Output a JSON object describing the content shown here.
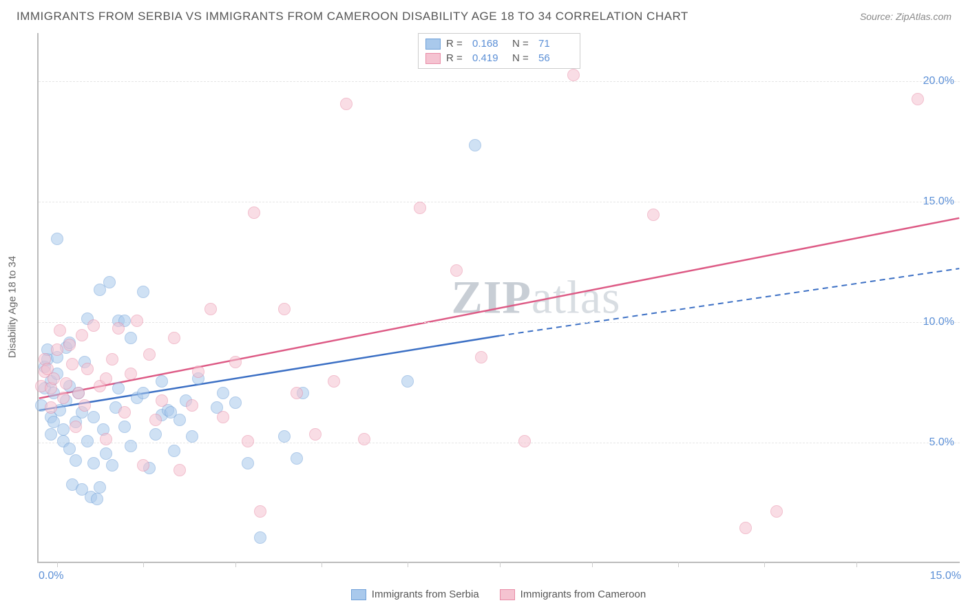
{
  "title": "IMMIGRANTS FROM SERBIA VS IMMIGRANTS FROM CAMEROON DISABILITY AGE 18 TO 34 CORRELATION CHART",
  "source": "Source: ZipAtlas.com",
  "yaxis_label": "Disability Age 18 to 34",
  "watermark_a": "ZIP",
  "watermark_b": "atlas",
  "chart": {
    "type": "scatter",
    "xlim": [
      0,
      15
    ],
    "ylim": [
      0,
      22
    ],
    "xticks": [
      0.0,
      15.0
    ],
    "xtick_labels": [
      "0.0%",
      "15.0%"
    ],
    "xminor": [
      0.3,
      1.7,
      3.2,
      4.6,
      6.0,
      7.5,
      9.0,
      10.4,
      11.8,
      13.3
    ],
    "yticks": [
      5.0,
      10.0,
      15.0,
      20.0
    ],
    "ytick_labels": [
      "5.0%",
      "10.0%",
      "15.0%",
      "20.0%"
    ],
    "background_color": "#ffffff",
    "grid_color": "#e5e5e5",
    "point_radius": 9,
    "point_opacity": 0.55,
    "series": [
      {
        "name": "Immigrants from Serbia",
        "color_fill": "#a9c9ec",
        "color_stroke": "#6fa0d8",
        "R": "0.168",
        "N": "71",
        "trend": {
          "color": "#3b6fc4",
          "width": 2.5,
          "x1": 0,
          "y1": 6.3,
          "x2": 7.5,
          "y2": 9.4,
          "dash_x2": 15,
          "dash_y2": 12.2
        },
        "points": [
          [
            0.05,
            6.5
          ],
          [
            0.1,
            7.2
          ],
          [
            0.1,
            8.1
          ],
          [
            0.15,
            8.4
          ],
          [
            0.15,
            8.8
          ],
          [
            0.2,
            7.5
          ],
          [
            0.2,
            6.0
          ],
          [
            0.2,
            5.3
          ],
          [
            0.25,
            5.8
          ],
          [
            0.25,
            7.0
          ],
          [
            0.3,
            7.8
          ],
          [
            0.3,
            8.5
          ],
          [
            0.3,
            13.4
          ],
          [
            0.35,
            6.3
          ],
          [
            0.4,
            5.0
          ],
          [
            0.4,
            5.5
          ],
          [
            0.45,
            6.7
          ],
          [
            0.45,
            8.9
          ],
          [
            0.5,
            7.3
          ],
          [
            0.5,
            4.7
          ],
          [
            0.5,
            9.1
          ],
          [
            0.55,
            3.2
          ],
          [
            0.6,
            4.2
          ],
          [
            0.6,
            5.8
          ],
          [
            0.65,
            7.0
          ],
          [
            0.7,
            6.2
          ],
          [
            0.7,
            3.0
          ],
          [
            0.75,
            8.3
          ],
          [
            0.8,
            10.1
          ],
          [
            0.8,
            5.0
          ],
          [
            0.85,
            2.7
          ],
          [
            0.9,
            4.1
          ],
          [
            0.9,
            6.0
          ],
          [
            0.95,
            2.6
          ],
          [
            1.0,
            3.1
          ],
          [
            1.0,
            11.3
          ],
          [
            1.05,
            5.5
          ],
          [
            1.1,
            4.5
          ],
          [
            1.15,
            11.6
          ],
          [
            1.2,
            4.0
          ],
          [
            1.25,
            6.4
          ],
          [
            1.3,
            10.0
          ],
          [
            1.3,
            7.2
          ],
          [
            1.4,
            5.6
          ],
          [
            1.4,
            10.0
          ],
          [
            1.5,
            4.8
          ],
          [
            1.5,
            9.3
          ],
          [
            1.6,
            6.8
          ],
          [
            1.7,
            7.0
          ],
          [
            1.7,
            11.2
          ],
          [
            1.8,
            3.9
          ],
          [
            1.9,
            5.3
          ],
          [
            2.0,
            6.1
          ],
          [
            2.0,
            7.5
          ],
          [
            2.1,
            6.3
          ],
          [
            2.15,
            6.2
          ],
          [
            2.2,
            4.6
          ],
          [
            2.3,
            5.9
          ],
          [
            2.4,
            6.7
          ],
          [
            2.5,
            5.2
          ],
          [
            2.6,
            7.6
          ],
          [
            2.9,
            6.4
          ],
          [
            3.0,
            7.0
          ],
          [
            3.2,
            6.6
          ],
          [
            3.4,
            4.1
          ],
          [
            3.6,
            1.0
          ],
          [
            4.0,
            5.2
          ],
          [
            4.2,
            4.3
          ],
          [
            4.3,
            7.0
          ],
          [
            6.0,
            7.5
          ],
          [
            7.1,
            17.3
          ]
        ]
      },
      {
        "name": "Immigrants from Cameroon",
        "color_fill": "#f5c3d1",
        "color_stroke": "#e88ba6",
        "R": "0.419",
        "N": "56",
        "trend": {
          "color": "#dd5a85",
          "width": 2.5,
          "x1": 0,
          "y1": 6.8,
          "x2": 15,
          "y2": 14.3
        },
        "points": [
          [
            0.05,
            7.3
          ],
          [
            0.1,
            7.9
          ],
          [
            0.1,
            8.4
          ],
          [
            0.15,
            8.0
          ],
          [
            0.2,
            7.2
          ],
          [
            0.2,
            6.4
          ],
          [
            0.25,
            7.6
          ],
          [
            0.3,
            8.8
          ],
          [
            0.35,
            9.6
          ],
          [
            0.4,
            6.8
          ],
          [
            0.45,
            7.4
          ],
          [
            0.5,
            9.0
          ],
          [
            0.55,
            8.2
          ],
          [
            0.6,
            5.6
          ],
          [
            0.65,
            7.0
          ],
          [
            0.7,
            9.4
          ],
          [
            0.75,
            6.5
          ],
          [
            0.8,
            8.0
          ],
          [
            0.9,
            9.8
          ],
          [
            1.0,
            7.3
          ],
          [
            1.1,
            5.1
          ],
          [
            1.1,
            7.6
          ],
          [
            1.2,
            8.4
          ],
          [
            1.3,
            9.7
          ],
          [
            1.4,
            6.2
          ],
          [
            1.5,
            7.8
          ],
          [
            1.6,
            10.0
          ],
          [
            1.7,
            4.0
          ],
          [
            1.8,
            8.6
          ],
          [
            1.9,
            5.9
          ],
          [
            2.0,
            6.7
          ],
          [
            2.2,
            9.3
          ],
          [
            2.3,
            3.8
          ],
          [
            2.5,
            6.5
          ],
          [
            2.6,
            7.9
          ],
          [
            2.8,
            10.5
          ],
          [
            3.0,
            6.0
          ],
          [
            3.2,
            8.3
          ],
          [
            3.4,
            5.0
          ],
          [
            3.5,
            14.5
          ],
          [
            3.6,
            2.1
          ],
          [
            4.0,
            10.5
          ],
          [
            4.2,
            7.0
          ],
          [
            4.5,
            5.3
          ],
          [
            4.8,
            7.5
          ],
          [
            5.0,
            19.0
          ],
          [
            5.3,
            5.1
          ],
          [
            6.2,
            14.7
          ],
          [
            6.8,
            12.1
          ],
          [
            7.2,
            8.5
          ],
          [
            7.9,
            5.0
          ],
          [
            8.7,
            20.2
          ],
          [
            10.0,
            14.4
          ],
          [
            11.5,
            1.4
          ],
          [
            12.0,
            2.1
          ],
          [
            14.3,
            19.2
          ]
        ]
      }
    ]
  },
  "legend_top": {
    "r_label": "R =",
    "n_label": "N ="
  }
}
